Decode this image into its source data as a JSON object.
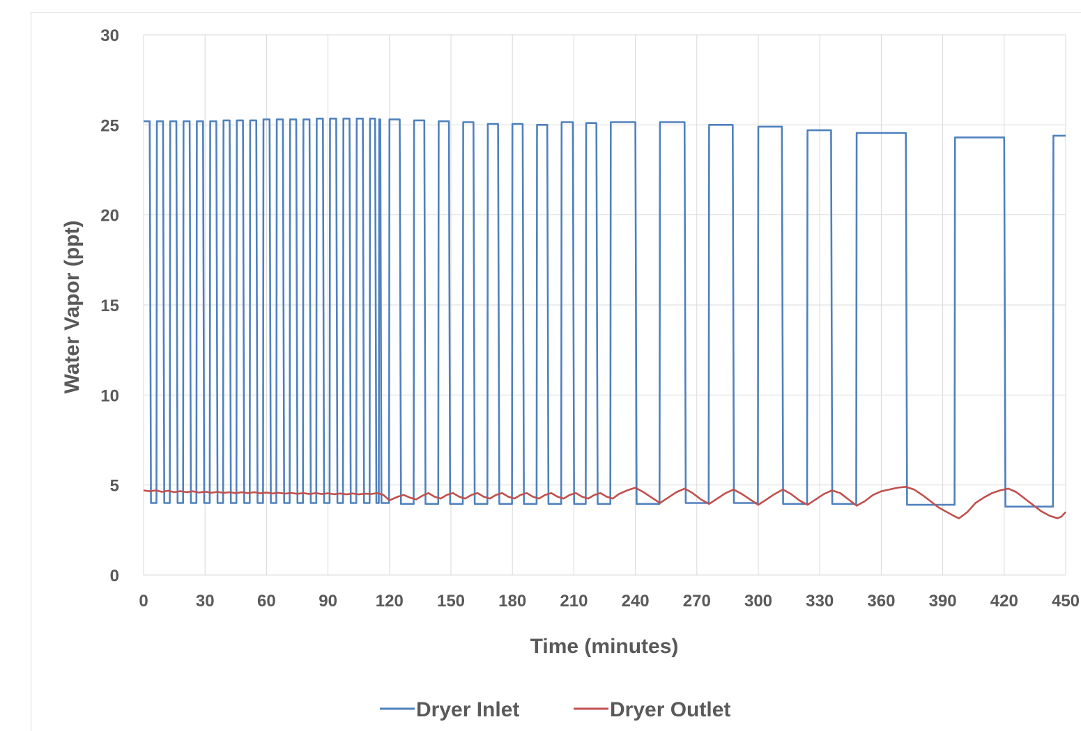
{
  "chart_data": {
    "type": "line",
    "title": "",
    "xlabel": "Time (minutes)",
    "ylabel": "Water Vapor (ppt)",
    "xlim": [
      0,
      450
    ],
    "ylim": [
      0,
      30
    ],
    "x_ticks": [
      "0",
      "30",
      "60",
      "90",
      "120",
      "150",
      "180",
      "210",
      "240",
      "270",
      "300",
      "330",
      "360",
      "390",
      "420",
      "450"
    ],
    "y_ticks": [
      "0",
      "5",
      "10",
      "15",
      "20",
      "25",
      "30"
    ],
    "grid": "vertical and horizontal",
    "legend": "bottom",
    "series": [
      {
        "name": "Dryer Inlet",
        "color": "#4f81bd",
        "cycles": [
          {
            "start": 0,
            "high_end": 3,
            "high": 25.2,
            "low": 4.0
          },
          {
            "start": 6.5,
            "high_end": 9.5,
            "high": 25.2,
            "low": 4.0
          },
          {
            "start": 13,
            "high_end": 16,
            "high": 25.2,
            "low": 4.0
          },
          {
            "start": 19.5,
            "high_end": 22.5,
            "high": 25.2,
            "low": 4.0
          },
          {
            "start": 26,
            "high_end": 29,
            "high": 25.2,
            "low": 4.0
          },
          {
            "start": 32.5,
            "high_end": 35.5,
            "high": 25.2,
            "low": 4.0
          },
          {
            "start": 39,
            "high_end": 42,
            "high": 25.25,
            "low": 4.0
          },
          {
            "start": 45.5,
            "high_end": 48.5,
            "high": 25.25,
            "low": 4.0
          },
          {
            "start": 52,
            "high_end": 55,
            "high": 25.25,
            "low": 4.0
          },
          {
            "start": 58.5,
            "high_end": 61.5,
            "high": 25.3,
            "low": 4.0
          },
          {
            "start": 65,
            "high_end": 68,
            "high": 25.3,
            "low": 4.0
          },
          {
            "start": 71.5,
            "high_end": 74.5,
            "high": 25.3,
            "low": 4.0
          },
          {
            "start": 78,
            "high_end": 81,
            "high": 25.3,
            "low": 4.0
          },
          {
            "start": 84.5,
            "high_end": 87.5,
            "high": 25.35,
            "low": 4.0
          },
          {
            "start": 91,
            "high_end": 94,
            "high": 25.35,
            "low": 4.0
          },
          {
            "start": 97.5,
            "high_end": 100.5,
            "high": 25.35,
            "low": 4.0
          },
          {
            "start": 104,
            "high_end": 107,
            "high": 25.35,
            "low": 4.0
          },
          {
            "start": 110.5,
            "high_end": 113,
            "high": 25.35,
            "low": 4.0
          },
          {
            "start": 115,
            "high_end": 115.5,
            "high": 25.3,
            "low": 4.0
          },
          {
            "start": 120,
            "high_end": 125,
            "high": 25.3,
            "low": 3.95
          },
          {
            "start": 132,
            "high_end": 137,
            "high": 25.25,
            "low": 3.95
          },
          {
            "start": 144,
            "high_end": 149,
            "high": 25.2,
            "low": 3.95
          },
          {
            "start": 156,
            "high_end": 161,
            "high": 25.15,
            "low": 3.95
          },
          {
            "start": 168,
            "high_end": 173,
            "high": 25.05,
            "low": 3.95
          },
          {
            "start": 180,
            "high_end": 185,
            "high": 25.05,
            "low": 3.95
          },
          {
            "start": 192,
            "high_end": 197,
            "high": 25.0,
            "low": 3.95
          },
          {
            "start": 204,
            "high_end": 209.5,
            "high": 25.15,
            "low": 3.95
          },
          {
            "start": 216,
            "high_end": 221,
            "high": 25.1,
            "low": 3.95
          },
          {
            "start": 228,
            "high_end": 240,
            "high": 25.15,
            "low": 3.95
          },
          {
            "start": 252,
            "high_end": 264,
            "high": 25.15,
            "low": 4.0
          },
          {
            "start": 276,
            "high_end": 287.5,
            "high": 25.0,
            "low": 4.0
          },
          {
            "start": 300,
            "high_end": 311.5,
            "high": 24.9,
            "low": 3.95
          },
          {
            "start": 324,
            "high_end": 335.5,
            "high": 24.7,
            "low": 3.95
          },
          {
            "start": 348,
            "high_end": 372,
            "high": 24.55,
            "low": 3.9
          },
          {
            "start": 396,
            "high_end": 420,
            "high": 24.3,
            "low": 3.8
          },
          {
            "start": 444,
            "high_end": 450,
            "high": 24.4,
            "low": 3.8
          }
        ]
      },
      {
        "name": "Dryer Outlet",
        "color": "#c0504d",
        "points": [
          [
            0,
            4.7
          ],
          [
            3,
            4.65
          ],
          [
            6,
            4.7
          ],
          [
            9,
            4.62
          ],
          [
            12,
            4.68
          ],
          [
            15,
            4.6
          ],
          [
            18,
            4.66
          ],
          [
            21,
            4.6
          ],
          [
            24,
            4.65
          ],
          [
            27,
            4.58
          ],
          [
            30,
            4.63
          ],
          [
            33,
            4.57
          ],
          [
            36,
            4.62
          ],
          [
            39,
            4.56
          ],
          [
            42,
            4.6
          ],
          [
            45,
            4.55
          ],
          [
            48,
            4.6
          ],
          [
            51,
            4.55
          ],
          [
            54,
            4.6
          ],
          [
            57,
            4.54
          ],
          [
            60,
            4.58
          ],
          [
            63,
            4.53
          ],
          [
            66,
            4.57
          ],
          [
            69,
            4.52
          ],
          [
            72,
            4.56
          ],
          [
            75,
            4.51
          ],
          [
            78,
            4.55
          ],
          [
            81,
            4.5
          ],
          [
            84,
            4.55
          ],
          [
            87,
            4.5
          ],
          [
            90,
            4.54
          ],
          [
            93,
            4.49
          ],
          [
            96,
            4.53
          ],
          [
            99,
            4.48
          ],
          [
            102,
            4.53
          ],
          [
            105,
            4.48
          ],
          [
            108,
            4.52
          ],
          [
            111,
            4.5
          ],
          [
            114,
            4.55
          ],
          [
            117,
            4.45
          ],
          [
            120,
            4.15
          ],
          [
            124,
            4.35
          ],
          [
            127,
            4.45
          ],
          [
            130,
            4.3
          ],
          [
            133,
            4.2
          ],
          [
            136,
            4.4
          ],
          [
            139,
            4.55
          ],
          [
            142,
            4.35
          ],
          [
            145,
            4.25
          ],
          [
            148,
            4.45
          ],
          [
            151,
            4.55
          ],
          [
            154,
            4.35
          ],
          [
            157,
            4.25
          ],
          [
            160,
            4.45
          ],
          [
            163,
            4.55
          ],
          [
            166,
            4.35
          ],
          [
            169,
            4.25
          ],
          [
            172,
            4.45
          ],
          [
            175,
            4.55
          ],
          [
            178,
            4.35
          ],
          [
            181,
            4.25
          ],
          [
            184,
            4.45
          ],
          [
            187,
            4.55
          ],
          [
            190,
            4.35
          ],
          [
            193,
            4.25
          ],
          [
            196,
            4.45
          ],
          [
            199,
            4.55
          ],
          [
            202,
            4.35
          ],
          [
            205,
            4.25
          ],
          [
            208,
            4.45
          ],
          [
            211,
            4.55
          ],
          [
            214,
            4.35
          ],
          [
            217,
            4.25
          ],
          [
            220,
            4.45
          ],
          [
            223,
            4.55
          ],
          [
            226,
            4.35
          ],
          [
            229,
            4.25
          ],
          [
            232,
            4.5
          ],
          [
            236,
            4.7
          ],
          [
            240,
            4.85
          ],
          [
            244,
            4.6
          ],
          [
            248,
            4.3
          ],
          [
            252,
            4.0
          ],
          [
            256,
            4.3
          ],
          [
            260,
            4.6
          ],
          [
            264,
            4.8
          ],
          [
            268,
            4.55
          ],
          [
            272,
            4.2
          ],
          [
            276,
            3.95
          ],
          [
            280,
            4.25
          ],
          [
            284,
            4.55
          ],
          [
            288,
            4.75
          ],
          [
            292,
            4.5
          ],
          [
            296,
            4.2
          ],
          [
            300,
            3.9
          ],
          [
            304,
            4.2
          ],
          [
            308,
            4.5
          ],
          [
            312,
            4.75
          ],
          [
            316,
            4.5
          ],
          [
            320,
            4.15
          ],
          [
            324,
            3.9
          ],
          [
            328,
            4.2
          ],
          [
            332,
            4.5
          ],
          [
            336,
            4.7
          ],
          [
            340,
            4.55
          ],
          [
            344,
            4.2
          ],
          [
            348,
            3.85
          ],
          [
            352,
            4.1
          ],
          [
            356,
            4.45
          ],
          [
            360,
            4.65
          ],
          [
            364,
            4.75
          ],
          [
            368,
            4.85
          ],
          [
            372,
            4.9
          ],
          [
            376,
            4.75
          ],
          [
            380,
            4.45
          ],
          [
            384,
            4.1
          ],
          [
            388,
            3.75
          ],
          [
            392,
            3.5
          ],
          [
            396,
            3.25
          ],
          [
            398,
            3.15
          ],
          [
            402,
            3.5
          ],
          [
            406,
            4.0
          ],
          [
            410,
            4.3
          ],
          [
            414,
            4.55
          ],
          [
            418,
            4.7
          ],
          [
            422,
            4.8
          ],
          [
            426,
            4.6
          ],
          [
            430,
            4.25
          ],
          [
            434,
            3.9
          ],
          [
            438,
            3.55
          ],
          [
            442,
            3.3
          ],
          [
            446,
            3.15
          ],
          [
            448,
            3.25
          ],
          [
            450,
            3.5
          ]
        ]
      }
    ]
  }
}
